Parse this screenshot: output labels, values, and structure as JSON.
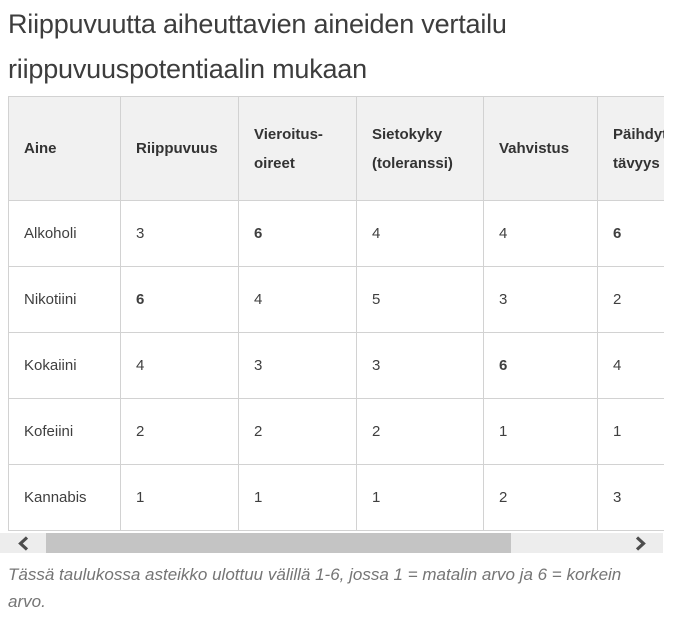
{
  "page": {
    "title": "Riippuvuutta aiheuttavien aineiden vertailu riippuvuuspotentiaalin mukaan"
  },
  "table": {
    "header": [
      {
        "label": "Aine",
        "lines": [
          "Aine"
        ]
      },
      {
        "label": "Riippuvuus",
        "lines": [
          "Riippuvuus"
        ]
      },
      {
        "label": "Vieroitus-oireet",
        "lines": [
          "Vieroitus-",
          "oireet"
        ]
      },
      {
        "label": "Sietokyky (toleranssi)",
        "lines": [
          "Sietokyky",
          "(toleranssi)"
        ]
      },
      {
        "label": "Vahvistus",
        "lines": [
          "Vahvistus"
        ]
      },
      {
        "label": "Päihdyt-tävyys",
        "lines": [
          "Päihdyt-",
          "tävyys"
        ]
      }
    ],
    "rows": [
      {
        "name": "Alkoholi",
        "values": [
          "3",
          "6",
          "4",
          "4",
          "6"
        ],
        "bold": [
          false,
          true,
          false,
          false,
          true
        ]
      },
      {
        "name": "Nikotiini",
        "values": [
          "6",
          "4",
          "5",
          "3",
          "2"
        ],
        "bold": [
          true,
          false,
          false,
          false,
          false
        ]
      },
      {
        "name": "Kokaiini",
        "values": [
          "4",
          "3",
          "3",
          "6",
          "4"
        ],
        "bold": [
          false,
          false,
          false,
          true,
          false
        ]
      },
      {
        "name": "Kofeiini",
        "values": [
          "2",
          "2",
          "2",
          "1",
          "1"
        ],
        "bold": [
          false,
          false,
          false,
          false,
          false
        ]
      },
      {
        "name": "Kannabis",
        "values": [
          "1",
          "1",
          "1",
          "2",
          "3"
        ],
        "bold": [
          false,
          false,
          false,
          false,
          false
        ]
      }
    ]
  },
  "footnote": "Tässä taulukossa asteikko ulottuu välillä 1-6, jossa 1 = matalin arvo ja 6 = korkein arvo.",
  "scrollbar": {
    "left_arrow_icon": "chevron-left",
    "right_arrow_icon": "chevron-right"
  },
  "colors": {
    "title_text": "#3d3d3d",
    "header_bg": "#f1f1f1",
    "cell_border": "#d2d2d2",
    "cell_text": "#3f3f3f",
    "footnote_text": "#757575",
    "scroll_track": "#ededed",
    "scroll_thumb": "#c4c4c4",
    "scroll_arrow": "#4d4d4d"
  },
  "chart_data": {
    "type": "table",
    "title": "Riippuvuutta aiheuttavien aineiden vertailu riippuvuuspotentiaalin mukaan",
    "columns": [
      "Aine",
      "Riippuvuus",
      "Vieroitus-oireet",
      "Sietokyky (toleranssi)",
      "Vahvistus",
      "Päihdyt-tävyys"
    ],
    "rows": [
      [
        "Alkoholi",
        3,
        6,
        4,
        4,
        6
      ],
      [
        "Nikotiini",
        6,
        4,
        5,
        3,
        2
      ],
      [
        "Kokaiini",
        4,
        3,
        3,
        6,
        4
      ],
      [
        "Kofeiini",
        2,
        2,
        2,
        1,
        1
      ],
      [
        "Kannabis",
        1,
        1,
        1,
        2,
        3
      ]
    ],
    "max_values_bolded": true,
    "scale": {
      "min": 1,
      "max": 6,
      "note": "1 = matalin arvo, 6 = korkein arvo"
    }
  }
}
